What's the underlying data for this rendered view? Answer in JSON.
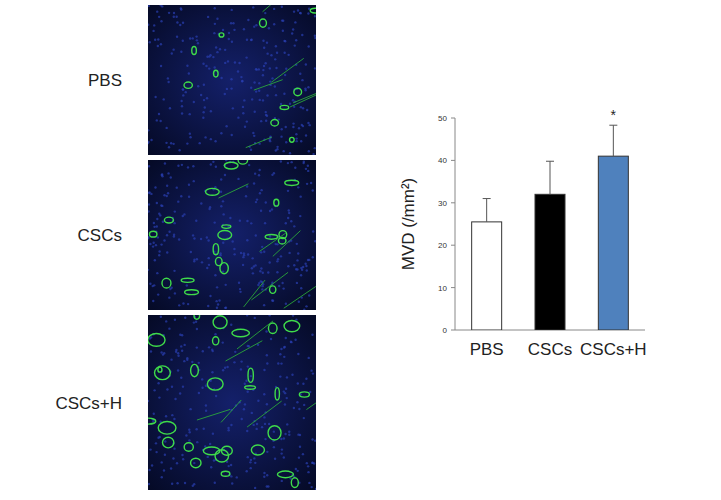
{
  "image_panels": [
    "PBS",
    "CSCs",
    "CSCs+H"
  ],
  "chart_data": {
    "type": "bar",
    "y_label": "MVD (/mm²)",
    "categories": [
      "PBS",
      "CSCs",
      "CSCs+H"
    ],
    "values": [
      25.5,
      32,
      41
    ],
    "errors": [
      5.5,
      7.8,
      7.3
    ],
    "colors": [
      "#ffffff",
      "#000000",
      "#4f81bd"
    ],
    "ylim": [
      0,
      50
    ],
    "yticks": [
      0,
      10,
      20,
      30,
      40,
      50
    ],
    "grid": false,
    "annotations": [
      {
        "label": "*",
        "category": "CSCs+H"
      }
    ]
  }
}
